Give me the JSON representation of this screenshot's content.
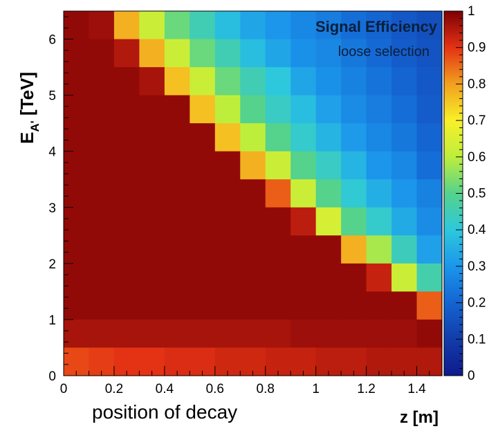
{
  "chart_data": {
    "type": "heatmap",
    "title": "Signal Efficiency",
    "subtitle": "loose selection",
    "xlabel": "z [m]",
    "ylabel": "E_A' [TeV]",
    "ylabel_parts": {
      "main": "E",
      "subscript": "A'",
      "unit": " [TeV]"
    },
    "annotation": "position of decay",
    "xlim": [
      0,
      1.5
    ],
    "ylim": [
      0,
      6.5
    ],
    "x_ticks": [
      0,
      0.2,
      0.4,
      0.6,
      0.8,
      1,
      1.2,
      1.4
    ],
    "x_tick_labels": [
      "0",
      "0.2",
      "0.4",
      "0.6",
      "0.8",
      "1",
      "1.2",
      "1.4"
    ],
    "y_ticks": [
      0,
      1,
      2,
      3,
      4,
      5,
      6
    ],
    "y_tick_labels": [
      "0",
      "1",
      "2",
      "3",
      "4",
      "5",
      "6"
    ],
    "colorbar": {
      "range": [
        0,
        1
      ],
      "ticks": [
        0,
        0.1,
        0.2,
        0.3,
        0.4,
        0.5,
        0.6,
        0.7,
        0.8,
        0.9,
        1
      ],
      "tick_labels": [
        "0",
        "0.1",
        "0.2",
        "0.3",
        "0.4",
        "0.5",
        "0.6",
        "0.7",
        "0.8",
        "0.9",
        "1"
      ],
      "colormap": "rainbow (dark blue to dark red)"
    },
    "x_bins": [
      0,
      0.1,
      0.2,
      0.3,
      0.4,
      0.5,
      0.6,
      0.7,
      0.8,
      0.9,
      1.0,
      1.1,
      1.2,
      1.3,
      1.4,
      1.5
    ],
    "y_bins": [
      0,
      0.5,
      1.0,
      1.5,
      2.0,
      2.5,
      3.0,
      3.5,
      4.0,
      4.5,
      5.0,
      5.5,
      6.0,
      6.5
    ],
    "values_rows_top_to_bottom": [
      [
        0.98,
        0.97,
        0.78,
        0.62,
        0.52,
        0.45,
        0.38,
        0.33,
        0.3,
        0.27,
        0.25,
        0.22,
        0.2,
        0.17,
        0.15
      ],
      [
        0.98,
        0.98,
        0.95,
        0.78,
        0.62,
        0.52,
        0.45,
        0.38,
        0.33,
        0.29,
        0.27,
        0.24,
        0.21,
        0.18,
        0.16
      ],
      [
        0.98,
        0.98,
        0.98,
        0.96,
        0.76,
        0.62,
        0.52,
        0.45,
        0.4,
        0.33,
        0.29,
        0.26,
        0.23,
        0.2,
        0.17
      ],
      [
        0.98,
        0.98,
        0.98,
        0.98,
        0.98,
        0.76,
        0.6,
        0.5,
        0.43,
        0.38,
        0.32,
        0.28,
        0.25,
        0.22,
        0.18
      ],
      [
        0.98,
        0.98,
        0.98,
        0.98,
        0.98,
        0.98,
        0.76,
        0.6,
        0.5,
        0.42,
        0.36,
        0.31,
        0.27,
        0.24,
        0.2
      ],
      [
        0.98,
        0.98,
        0.98,
        0.98,
        0.98,
        0.98,
        0.98,
        0.78,
        0.62,
        0.5,
        0.43,
        0.36,
        0.3,
        0.27,
        0.22
      ],
      [
        0.98,
        0.98,
        0.98,
        0.98,
        0.98,
        0.98,
        0.98,
        0.98,
        0.86,
        0.62,
        0.5,
        0.41,
        0.35,
        0.3,
        0.26
      ],
      [
        0.98,
        0.98,
        0.98,
        0.98,
        0.98,
        0.98,
        0.98,
        0.98,
        0.98,
        0.94,
        0.64,
        0.5,
        0.42,
        0.34,
        0.28
      ],
      [
        0.98,
        0.98,
        0.98,
        0.98,
        0.98,
        0.98,
        0.98,
        0.98,
        0.98,
        0.98,
        0.98,
        0.78,
        0.58,
        0.44,
        0.32
      ],
      [
        0.98,
        0.98,
        0.98,
        0.98,
        0.98,
        0.98,
        0.98,
        0.98,
        0.98,
        0.98,
        0.98,
        0.98,
        0.93,
        0.62,
        0.46
      ],
      [
        0.98,
        0.98,
        0.98,
        0.98,
        0.98,
        0.98,
        0.98,
        0.98,
        0.98,
        0.98,
        0.98,
        0.98,
        0.98,
        0.98,
        0.86
      ],
      [
        0.96,
        0.96,
        0.96,
        0.96,
        0.96,
        0.96,
        0.96,
        0.96,
        0.96,
        0.97,
        0.97,
        0.97,
        0.97,
        0.97,
        0.98
      ],
      [
        0.88,
        0.89,
        0.9,
        0.9,
        0.91,
        0.91,
        0.92,
        0.92,
        0.93,
        0.93,
        0.94,
        0.94,
        0.95,
        0.95,
        0.95
      ]
    ]
  }
}
